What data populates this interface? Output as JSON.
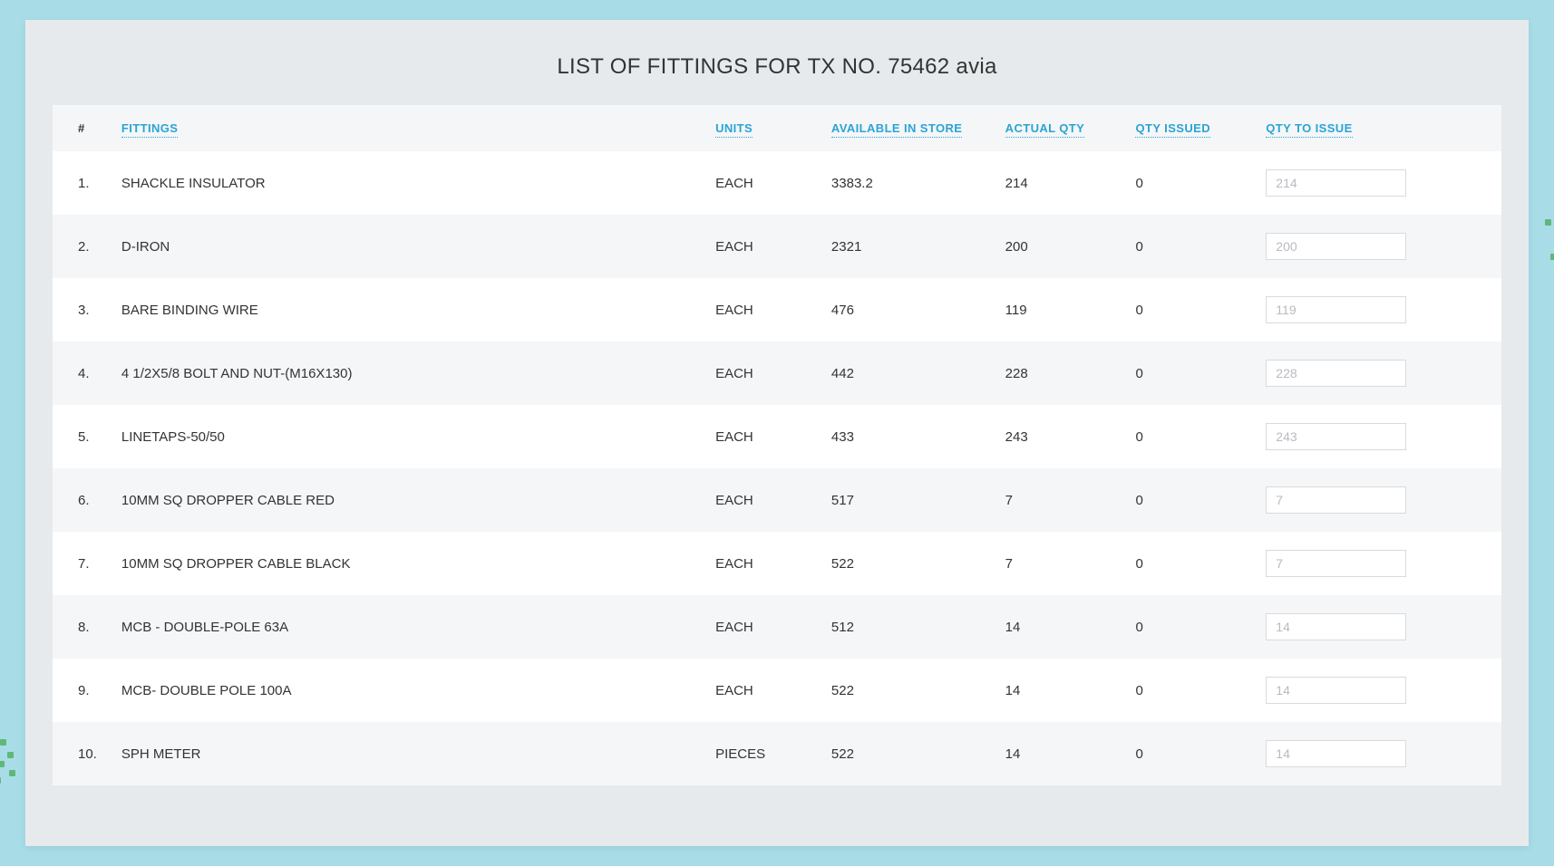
{
  "page": {
    "title": "LIST OF FITTINGS FOR TX NO. 75462 avia",
    "background_color": "#a8dde8",
    "panel_background": "#e7eaec",
    "table_background": "#ffffff",
    "row_alt_background": "#f5f6f7",
    "header_link_color": "#2aa4d6",
    "text_color": "#333333",
    "placeholder_color": "#b8bbc0",
    "border_color": "#d8dadd",
    "deco_dot_color": "#5fb87a"
  },
  "table": {
    "headers": {
      "num": "#",
      "fittings": "FITTINGS",
      "units": "UNITS",
      "available": "AVAILABLE IN STORE",
      "actual": "ACTUAL QTY",
      "issued": "QTY ISSUED",
      "to_issue": "QTY TO ISSUE"
    },
    "rows": [
      {
        "num": "1.",
        "fitting": "SHACKLE INSULATOR",
        "units": "EACH",
        "available": "3383.2",
        "actual": "214",
        "issued": "0",
        "to_issue": "214"
      },
      {
        "num": "2.",
        "fitting": "D-IRON",
        "units": "EACH",
        "available": "2321",
        "actual": "200",
        "issued": "0",
        "to_issue": "200"
      },
      {
        "num": "3.",
        "fitting": "BARE BINDING WIRE",
        "units": "EACH",
        "available": "476",
        "actual": "119",
        "issued": "0",
        "to_issue": "119"
      },
      {
        "num": "4.",
        "fitting": "4 1/2X5/8 BOLT AND NUT-(M16X130)",
        "units": "EACH",
        "available": "442",
        "actual": "228",
        "issued": "0",
        "to_issue": "228"
      },
      {
        "num": "5.",
        "fitting": "LINETAPS-50/50",
        "units": "EACH",
        "available": "433",
        "actual": "243",
        "issued": "0",
        "to_issue": "243"
      },
      {
        "num": "6.",
        "fitting": "10MM SQ DROPPER CABLE RED",
        "units": "EACH",
        "available": "517",
        "actual": "7",
        "issued": "0",
        "to_issue": "7"
      },
      {
        "num": "7.",
        "fitting": "10MM SQ DROPPER CABLE BLACK",
        "units": "EACH",
        "available": "522",
        "actual": "7",
        "issued": "0",
        "to_issue": "7"
      },
      {
        "num": "8.",
        "fitting": "MCB - DOUBLE-POLE 63A",
        "units": "EACH",
        "available": "512",
        "actual": "14",
        "issued": "0",
        "to_issue": "14"
      },
      {
        "num": "9.",
        "fitting": "MCB- DOUBLE POLE 100A",
        "units": "EACH",
        "available": "522",
        "actual": "14",
        "issued": "0",
        "to_issue": "14"
      },
      {
        "num": "10.",
        "fitting": "SPH METER",
        "units": "PIECES",
        "available": "522",
        "actual": "14",
        "issued": "0",
        "to_issue": "14"
      }
    ]
  }
}
